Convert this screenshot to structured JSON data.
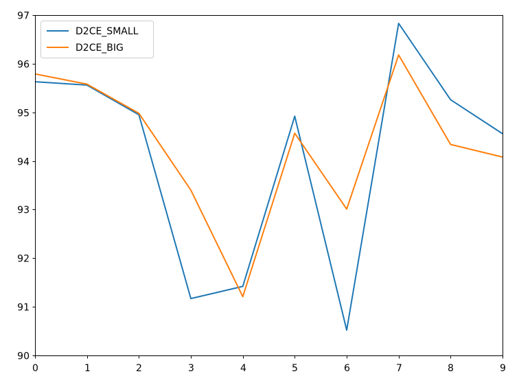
{
  "chart_data": {
    "type": "line",
    "x": [
      0,
      1,
      2,
      3,
      4,
      5,
      6,
      7,
      8,
      9
    ],
    "series": [
      {
        "name": "D2CE_SMALL",
        "color": "#1f77b4",
        "values": [
          95.63,
          95.56,
          94.95,
          91.17,
          91.42,
          94.92,
          90.52,
          96.83,
          95.26,
          94.56
        ]
      },
      {
        "name": "D2CE_BIG",
        "color": "#ff7f0e",
        "values": [
          95.79,
          95.58,
          94.98,
          93.4,
          91.21,
          94.57,
          93.01,
          96.18,
          94.34,
          94.08
        ]
      }
    ],
    "xlim": [
      0,
      9
    ],
    "ylim": [
      90,
      97
    ],
    "xticks": [
      "0",
      "1",
      "2",
      "3",
      "4",
      "5",
      "6",
      "7",
      "8",
      "9"
    ],
    "yticks": [
      "90",
      "91",
      "92",
      "93",
      "94",
      "95",
      "96",
      "97"
    ],
    "title": "",
    "xlabel": "",
    "ylabel": "",
    "grid": false,
    "legend": "top-left"
  }
}
